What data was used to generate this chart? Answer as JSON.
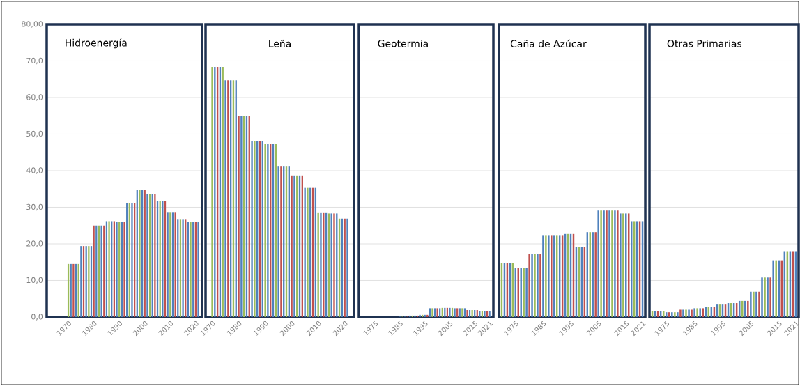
{
  "chart_data": [
    {
      "type": "bar",
      "title": "Hidroenergía",
      "grid": "y",
      "ylim": [
        0,
        80
      ],
      "yticks": [
        {
          "value": 0,
          "label": "0,0"
        },
        {
          "value": 10,
          "label": "10,0"
        },
        {
          "value": 20,
          "label": "20,0"
        },
        {
          "value": 30,
          "label": "30,0"
        },
        {
          "value": 40,
          "label": "40,0"
        },
        {
          "value": 50,
          "label": "50,0"
        },
        {
          "value": 60,
          "label": "60,0"
        },
        {
          "value": 70,
          "label": "70,0"
        },
        {
          "value": 80,
          "label": "80,00"
        }
      ],
      "categories": [
        "1970",
        null,
        null,
        null,
        null,
        null,
        null,
        null,
        null,
        null,
        "1980",
        null,
        null,
        null,
        null,
        null,
        null,
        null,
        null,
        null,
        "1990",
        null,
        null,
        null,
        null,
        null,
        null,
        null,
        null,
        null,
        "2000",
        null,
        null,
        null,
        null,
        null,
        null,
        null,
        null,
        null,
        "2010",
        null,
        null,
        null,
        null,
        null,
        null,
        null,
        null,
        null,
        "2020",
        null
      ],
      "values": [
        14.5,
        14.5,
        14.5,
        14.5,
        14.5,
        19.4,
        19.4,
        19.4,
        19.4,
        19.4,
        25.0,
        25.0,
        25.0,
        25.0,
        25.0,
        26.2,
        26.2,
        26.2,
        26.2,
        25.9,
        25.9,
        25.9,
        25.9,
        31.2,
        31.2,
        31.2,
        31.2,
        34.8,
        34.8,
        34.8,
        34.8,
        33.6,
        33.6,
        33.6,
        33.6,
        31.8,
        31.8,
        31.8,
        31.8,
        28.7,
        28.7,
        28.7,
        28.7,
        26.6,
        26.6,
        26.6,
        26.6,
        25.9,
        25.9,
        25.9,
        25.9,
        25.9
      ],
      "colors": [
        "#9bbb59",
        "#4f81bd",
        "#c0504d",
        "#4f81bd",
        "#9bbb59",
        "#4f81bd",
        "#c0504d",
        "#4f81bd",
        "#9bbb59",
        "#4f81bd",
        "#c0504d",
        "#4f81bd",
        "#9bbb59",
        "#4f81bd",
        "#c0504d",
        "#4f81bd",
        "#9bbb59",
        "#4f81bd",
        "#c0504d",
        "#4f81bd",
        "#9bbb59",
        "#4f81bd",
        "#c0504d",
        "#4f81bd",
        "#9bbb59",
        "#4f81bd",
        "#c0504d",
        "#4f81bd",
        "#9bbb59",
        "#4f81bd",
        "#c0504d",
        "#4f81bd",
        "#9bbb59",
        "#4f81bd",
        "#c0504d",
        "#4f81bd",
        "#9bbb59",
        "#4f81bd",
        "#c0504d",
        "#4f81bd",
        "#9bbb59",
        "#4f81bd",
        "#c0504d",
        "#4f81bd",
        "#9bbb59",
        "#4f81bd",
        "#c0504d",
        "#4f81bd",
        "#9bbb59",
        "#4f81bd",
        "#c0504d",
        "#4f81bd"
      ]
    },
    {
      "type": "bar",
      "title": "Leña",
      "grid": "y",
      "ylim": [
        0,
        80
      ],
      "tick_labels": "x",
      "yticks": [
        0,
        10,
        20,
        30,
        40,
        50,
        60,
        70,
        80
      ],
      "categories": [
        "1970",
        null,
        null,
        null,
        null,
        null,
        null,
        null,
        null,
        null,
        "1980",
        null,
        null,
        null,
        null,
        null,
        null,
        null,
        null,
        null,
        "1990",
        null,
        null,
        null,
        null,
        null,
        null,
        null,
        null,
        null,
        "2000",
        null,
        null,
        null,
        null,
        null,
        null,
        null,
        null,
        null,
        "2010",
        null,
        null,
        null,
        null,
        null,
        null,
        null,
        null,
        null,
        "2020",
        null
      ],
      "values": [
        68.4,
        68.4,
        68.4,
        68.4,
        68.4,
        64.7,
        64.7,
        64.7,
        64.7,
        64.7,
        54.9,
        54.9,
        54.9,
        54.9,
        54.9,
        48.0,
        48.0,
        48.0,
        48.0,
        48.0,
        47.4,
        47.4,
        47.4,
        47.4,
        47.4,
        41.3,
        41.3,
        41.3,
        41.3,
        41.3,
        38.7,
        38.7,
        38.7,
        38.7,
        38.7,
        35.3,
        35.3,
        35.3,
        35.3,
        35.3,
        28.6,
        28.6,
        28.6,
        28.6,
        28.3,
        28.3,
        28.3,
        28.3,
        26.9,
        26.9,
        26.9,
        26.9
      ],
      "colors": [
        "#9bbb59",
        "#4f81bd",
        "#c0504d",
        "#4f81bd",
        "#9bbb59",
        "#4f81bd",
        "#c0504d",
        "#4f81bd",
        "#9bbb59",
        "#4f81bd",
        "#c0504d",
        "#4f81bd",
        "#9bbb59",
        "#4f81bd",
        "#c0504d",
        "#4f81bd",
        "#9bbb59",
        "#4f81bd",
        "#c0504d",
        "#4f81bd",
        "#9bbb59",
        "#4f81bd",
        "#c0504d",
        "#4f81bd",
        "#9bbb59",
        "#4f81bd",
        "#c0504d",
        "#4f81bd",
        "#9bbb59",
        "#4f81bd",
        "#c0504d",
        "#4f81bd",
        "#9bbb59",
        "#4f81bd",
        "#c0504d",
        "#4f81bd",
        "#9bbb59",
        "#4f81bd",
        "#c0504d",
        "#4f81bd",
        "#9bbb59",
        "#4f81bd",
        "#c0504d",
        "#4f81bd",
        "#9bbb59",
        "#4f81bd",
        "#c0504d",
        "#4f81bd",
        "#9bbb59",
        "#4f81bd",
        "#c0504d",
        "#4f81bd"
      ]
    },
    {
      "type": "bar",
      "title": "Geotermia",
      "grid": "y",
      "ylim": [
        0,
        80
      ],
      "tick_labels": "x",
      "yticks": [
        0,
        10,
        20,
        30,
        40,
        50,
        60,
        70,
        80
      ],
      "categories": [
        null,
        null,
        null,
        null,
        null,
        "1975",
        null,
        null,
        null,
        null,
        null,
        null,
        null,
        null,
        null,
        "1985",
        null,
        null,
        null,
        null,
        null,
        null,
        null,
        null,
        null,
        "1995",
        null,
        null,
        null,
        null,
        null,
        null,
        null,
        null,
        null,
        "2005",
        null,
        null,
        null,
        null,
        null,
        null,
        null,
        null,
        null,
        "2015",
        null,
        null,
        null,
        null,
        null,
        "2021"
      ],
      "values": [
        0,
        0,
        0,
        0,
        0,
        0,
        0,
        0,
        0,
        0,
        0,
        0,
        0,
        0,
        0,
        0.1,
        0.1,
        0.1,
        0.1,
        0.4,
        0.4,
        0.4,
        0.4,
        0.6,
        0.6,
        0.6,
        0.6,
        2.4,
        2.4,
        2.4,
        2.4,
        2.4,
        2.5,
        2.5,
        2.5,
        2.5,
        2.5,
        2.4,
        2.4,
        2.4,
        2.4,
        2.4,
        1.9,
        1.9,
        1.9,
        1.9,
        1.9,
        1.6,
        1.6,
        1.6,
        1.6,
        1.6
      ],
      "colors": [
        "#9bbb59",
        "#4f81bd",
        "#c0504d",
        "#4f81bd",
        "#9bbb59",
        "#4f81bd",
        "#c0504d",
        "#4f81bd",
        "#9bbb59",
        "#4f81bd",
        "#c0504d",
        "#4f81bd",
        "#9bbb59",
        "#4f81bd",
        "#c0504d",
        "#4f81bd",
        "#9bbb59",
        "#4f81bd",
        "#c0504d",
        "#4f81bd",
        "#9bbb59",
        "#4f81bd",
        "#c0504d",
        "#4f81bd",
        "#9bbb59",
        "#4f81bd",
        "#c0504d",
        "#4f81bd",
        "#9bbb59",
        "#4f81bd",
        "#c0504d",
        "#4f81bd",
        "#9bbb59",
        "#4f81bd",
        "#c0504d",
        "#4f81bd",
        "#9bbb59",
        "#4f81bd",
        "#c0504d",
        "#4f81bd",
        "#9bbb59",
        "#4f81bd",
        "#c0504d",
        "#4f81bd",
        "#9bbb59",
        "#4f81bd",
        "#c0504d",
        "#4f81bd",
        "#9bbb59",
        "#4f81bd",
        "#c0504d",
        "#4f81bd"
      ]
    },
    {
      "type": "bar",
      "title": "Caña de Azúcar",
      "grid": "y",
      "ylim": [
        0,
        80
      ],
      "tick_labels": "x",
      "yticks": [
        0,
        10,
        20,
        30,
        40,
        50,
        60,
        70,
        80
      ],
      "categories": [
        null,
        null,
        null,
        null,
        null,
        "1975",
        null,
        null,
        null,
        null,
        null,
        null,
        null,
        null,
        null,
        "1985",
        null,
        null,
        null,
        null,
        null,
        null,
        null,
        null,
        null,
        "1995",
        null,
        null,
        null,
        null,
        null,
        null,
        null,
        null,
        null,
        "2005",
        null,
        null,
        null,
        null,
        null,
        null,
        null,
        null,
        null,
        "2015",
        null,
        null,
        null,
        null,
        null,
        "2021"
      ],
      "values": [
        14.8,
        14.8,
        14.8,
        14.8,
        14.8,
        13.4,
        13.4,
        13.4,
        13.4,
        13.4,
        17.3,
        17.3,
        17.3,
        17.3,
        17.3,
        22.4,
        22.4,
        22.4,
        22.4,
        22.4,
        22.4,
        22.4,
        22.4,
        22.7,
        22.7,
        22.7,
        22.7,
        19.2,
        19.2,
        19.2,
        19.2,
        23.2,
        23.2,
        23.2,
        23.2,
        29.1,
        29.1,
        29.1,
        29.1,
        29.1,
        29.1,
        29.1,
        29.1,
        28.3,
        28.3,
        28.3,
        28.3,
        26.2,
        26.2,
        26.2,
        26.2,
        26.2
      ],
      "colors": [
        "#9bbb59",
        "#4f81bd",
        "#c0504d",
        "#4f81bd",
        "#9bbb59",
        "#4f81bd",
        "#c0504d",
        "#4f81bd",
        "#9bbb59",
        "#4f81bd",
        "#c0504d",
        "#4f81bd",
        "#9bbb59",
        "#4f81bd",
        "#c0504d",
        "#4f81bd",
        "#9bbb59",
        "#4f81bd",
        "#c0504d",
        "#4f81bd",
        "#9bbb59",
        "#4f81bd",
        "#c0504d",
        "#4f81bd",
        "#9bbb59",
        "#4f81bd",
        "#c0504d",
        "#4f81bd",
        "#9bbb59",
        "#4f81bd",
        "#c0504d",
        "#4f81bd",
        "#9bbb59",
        "#4f81bd",
        "#c0504d",
        "#4f81bd",
        "#9bbb59",
        "#4f81bd",
        "#c0504d",
        "#4f81bd",
        "#9bbb59",
        "#4f81bd",
        "#c0504d",
        "#4f81bd",
        "#9bbb59",
        "#4f81bd",
        "#c0504d",
        "#4f81bd",
        "#9bbb59",
        "#4f81bd",
        "#c0504d",
        "#4f81bd"
      ]
    },
    {
      "type": "bar",
      "title": "Otras Primarias",
      "grid": "y",
      "ylim": [
        0,
        80
      ],
      "tick_labels": "x",
      "yticks": [
        0,
        10,
        20,
        30,
        40,
        50,
        60,
        70,
        80
      ],
      "categories": [
        null,
        null,
        null,
        null,
        null,
        "1975",
        null,
        null,
        null,
        null,
        null,
        null,
        null,
        null,
        null,
        "1985",
        null,
        null,
        null,
        null,
        null,
        null,
        null,
        null,
        null,
        "1995",
        null,
        null,
        null,
        null,
        null,
        null,
        null,
        null,
        null,
        "2005",
        null,
        null,
        null,
        null,
        null,
        null,
        null,
        null,
        null,
        "2015",
        null,
        null,
        null,
        null,
        null,
        "2021"
      ],
      "values": [
        1.6,
        1.6,
        1.6,
        1.6,
        1.6,
        1.3,
        1.3,
        1.3,
        1.3,
        1.3,
        2.0,
        2.0,
        2.0,
        2.0,
        2.0,
        2.4,
        2.4,
        2.4,
        2.4,
        2.7,
        2.7,
        2.7,
        2.7,
        3.4,
        3.4,
        3.4,
        3.4,
        3.8,
        3.8,
        3.8,
        3.8,
        4.4,
        4.4,
        4.4,
        4.4,
        6.9,
        6.9,
        6.9,
        6.9,
        10.8,
        10.8,
        10.8,
        10.8,
        15.5,
        15.5,
        15.5,
        15.5,
        18.0,
        18.0,
        18.0,
        18.0,
        18.0
      ],
      "colors": [
        "#9bbb59",
        "#4f81bd",
        "#c0504d",
        "#4f81bd",
        "#9bbb59",
        "#4f81bd",
        "#c0504d",
        "#4f81bd",
        "#9bbb59",
        "#4f81bd",
        "#c0504d",
        "#4f81bd",
        "#9bbb59",
        "#4f81bd",
        "#c0504d",
        "#4f81bd",
        "#9bbb59",
        "#4f81bd",
        "#c0504d",
        "#4f81bd",
        "#9bbb59",
        "#4f81bd",
        "#c0504d",
        "#4f81bd",
        "#9bbb59",
        "#4f81bd",
        "#c0504d",
        "#4f81bd",
        "#9bbb59",
        "#4f81bd",
        "#c0504d",
        "#4f81bd",
        "#9bbb59",
        "#4f81bd",
        "#c0504d",
        "#4f81bd",
        "#9bbb59",
        "#4f81bd",
        "#c0504d",
        "#4f81bd",
        "#9bbb59",
        "#4f81bd",
        "#c0504d",
        "#4f81bd",
        "#9bbb59",
        "#4f81bd",
        "#c0504d",
        "#4f81bd",
        "#9bbb59",
        "#4f81bd",
        "#c0504d",
        "#4f81bd"
      ]
    }
  ]
}
